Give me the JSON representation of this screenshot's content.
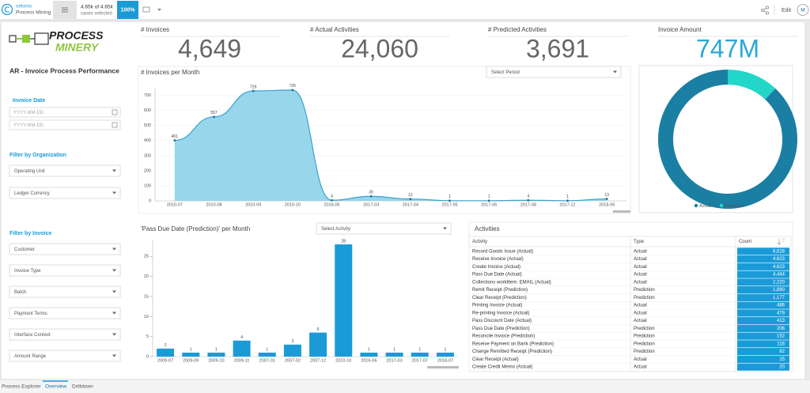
{
  "header": {
    "brand": "celonis",
    "product": "Process Mining",
    "selection": "4.65k of 4.65k",
    "selection_note": "cases selected",
    "percent": "100%",
    "edit": "Edit",
    "user": "M"
  },
  "sidebar": {
    "logo_top": "PROCESS",
    "logo_bottom": "MINERY",
    "title": "AR - Invoice Process Performance",
    "date_heading": "Invoice Date",
    "date_inputs": [
      "YYYY-MM-DD",
      "YYYY-MM-DD"
    ],
    "org_heading": "Filter by Organization",
    "org_filters": [
      "Operating Unit",
      "Ledger Currency"
    ],
    "invoice_heading": "Filter by Invoice",
    "invoice_filters": [
      "Customer",
      "Invoice Type",
      "Batch",
      "Payment Terms",
      "Interface Context",
      "Amount Range"
    ]
  },
  "kpis": [
    {
      "label": "# Invoices",
      "value": "4,649"
    },
    {
      "label": "# Actual Activities",
      "value": "24,060"
    },
    {
      "label": "# Predicted Activities",
      "value": "3,691"
    },
    {
      "label": "Invoice Amount",
      "value": "747M"
    }
  ],
  "chart_data": [
    {
      "type": "area",
      "title": "# Invoices per Month",
      "control": "Select Period",
      "categories": [
        "2010-07",
        "2010-08",
        "2010-09",
        "2010-10",
        "2016-05",
        "2017-03",
        "2017-04",
        "2017-05",
        "2017-06",
        "2017-08",
        "2017-12",
        "2018-06"
      ],
      "values": [
        401,
        557,
        729,
        735,
        4,
        30,
        12,
        1,
        1,
        4,
        1,
        13
      ],
      "color": "#86cfe9",
      "line_color": "#3aa3cc",
      "ylim": [
        0,
        750
      ],
      "yticks": [
        0,
        100,
        200,
        300,
        400,
        500,
        600,
        700
      ],
      "grid": true
    },
    {
      "type": "bar",
      "title": "'Pass Due Date (Prediction)' per Month",
      "control": "Select Activity",
      "categories": [
        "2009-07",
        "2009-09",
        "2009-10",
        "2009-11",
        "2007-01",
        "2007-02",
        "2007-12",
        "2010-10",
        "2016-06",
        "2017-03",
        "2017-07",
        "2018-07"
      ],
      "values": [
        2,
        1,
        1,
        4,
        1,
        3,
        6,
        28,
        1,
        1,
        1,
        1
      ],
      "color": "#1a9bd7",
      "ylim": [
        0,
        29
      ],
      "yticks": [
        0,
        5,
        10,
        15,
        20,
        25
      ],
      "grid": false
    },
    {
      "type": "pie",
      "categories": [
        "Actual",
        "Prediction"
      ],
      "values": [
        88,
        12
      ],
      "colors": [
        "#1b7fa3",
        "#22d6c8"
      ]
    }
  ],
  "table": {
    "title": "Activities",
    "columns": [
      "Activity",
      "Type",
      "Count"
    ],
    "rows": [
      [
        "Record Goods Issue (Actual)",
        "Actual",
        "6,628"
      ],
      [
        "Receive Invoice (Actual)",
        "Actual",
        "4,623"
      ],
      [
        "Create Invoice (Actual)",
        "Actual",
        "4,623"
      ],
      [
        "Pass Due Date (Actual)",
        "Actual",
        "4,444"
      ],
      [
        "Collections worklitem: EMAIL (Actual)",
        "Actual",
        "2,220"
      ],
      [
        "Remit Receipt (Prediction)",
        "Prediction",
        "1,890"
      ],
      [
        "Clear Receipt (Prediction)",
        "Prediction",
        "1,177"
      ],
      [
        "Printing Invoice (Actual)",
        "Actual",
        "486"
      ],
      [
        "Re-printing Invoice (Actual)",
        "Actual",
        "479"
      ],
      [
        "Pass Discount Date (Actual)",
        "Actual",
        "413"
      ],
      [
        "Pass Due Date (Prediction)",
        "Prediction",
        "206"
      ],
      [
        "Reconcile Invoice (Prediction)",
        "Prediction",
        "152"
      ],
      [
        "Receive Payment on Bank (Prediction)",
        "Prediction",
        "116"
      ],
      [
        "Change Remitted Receipt (Prediction)",
        "Prediction",
        "82"
      ],
      [
        "Clear Receipt (Actual)",
        "Actual",
        "25"
      ],
      [
        "Create Credit Memo (Actual)",
        "Actual",
        "20"
      ]
    ]
  },
  "tabs": [
    "Process Explorer",
    "Overview",
    "Drilldown"
  ]
}
